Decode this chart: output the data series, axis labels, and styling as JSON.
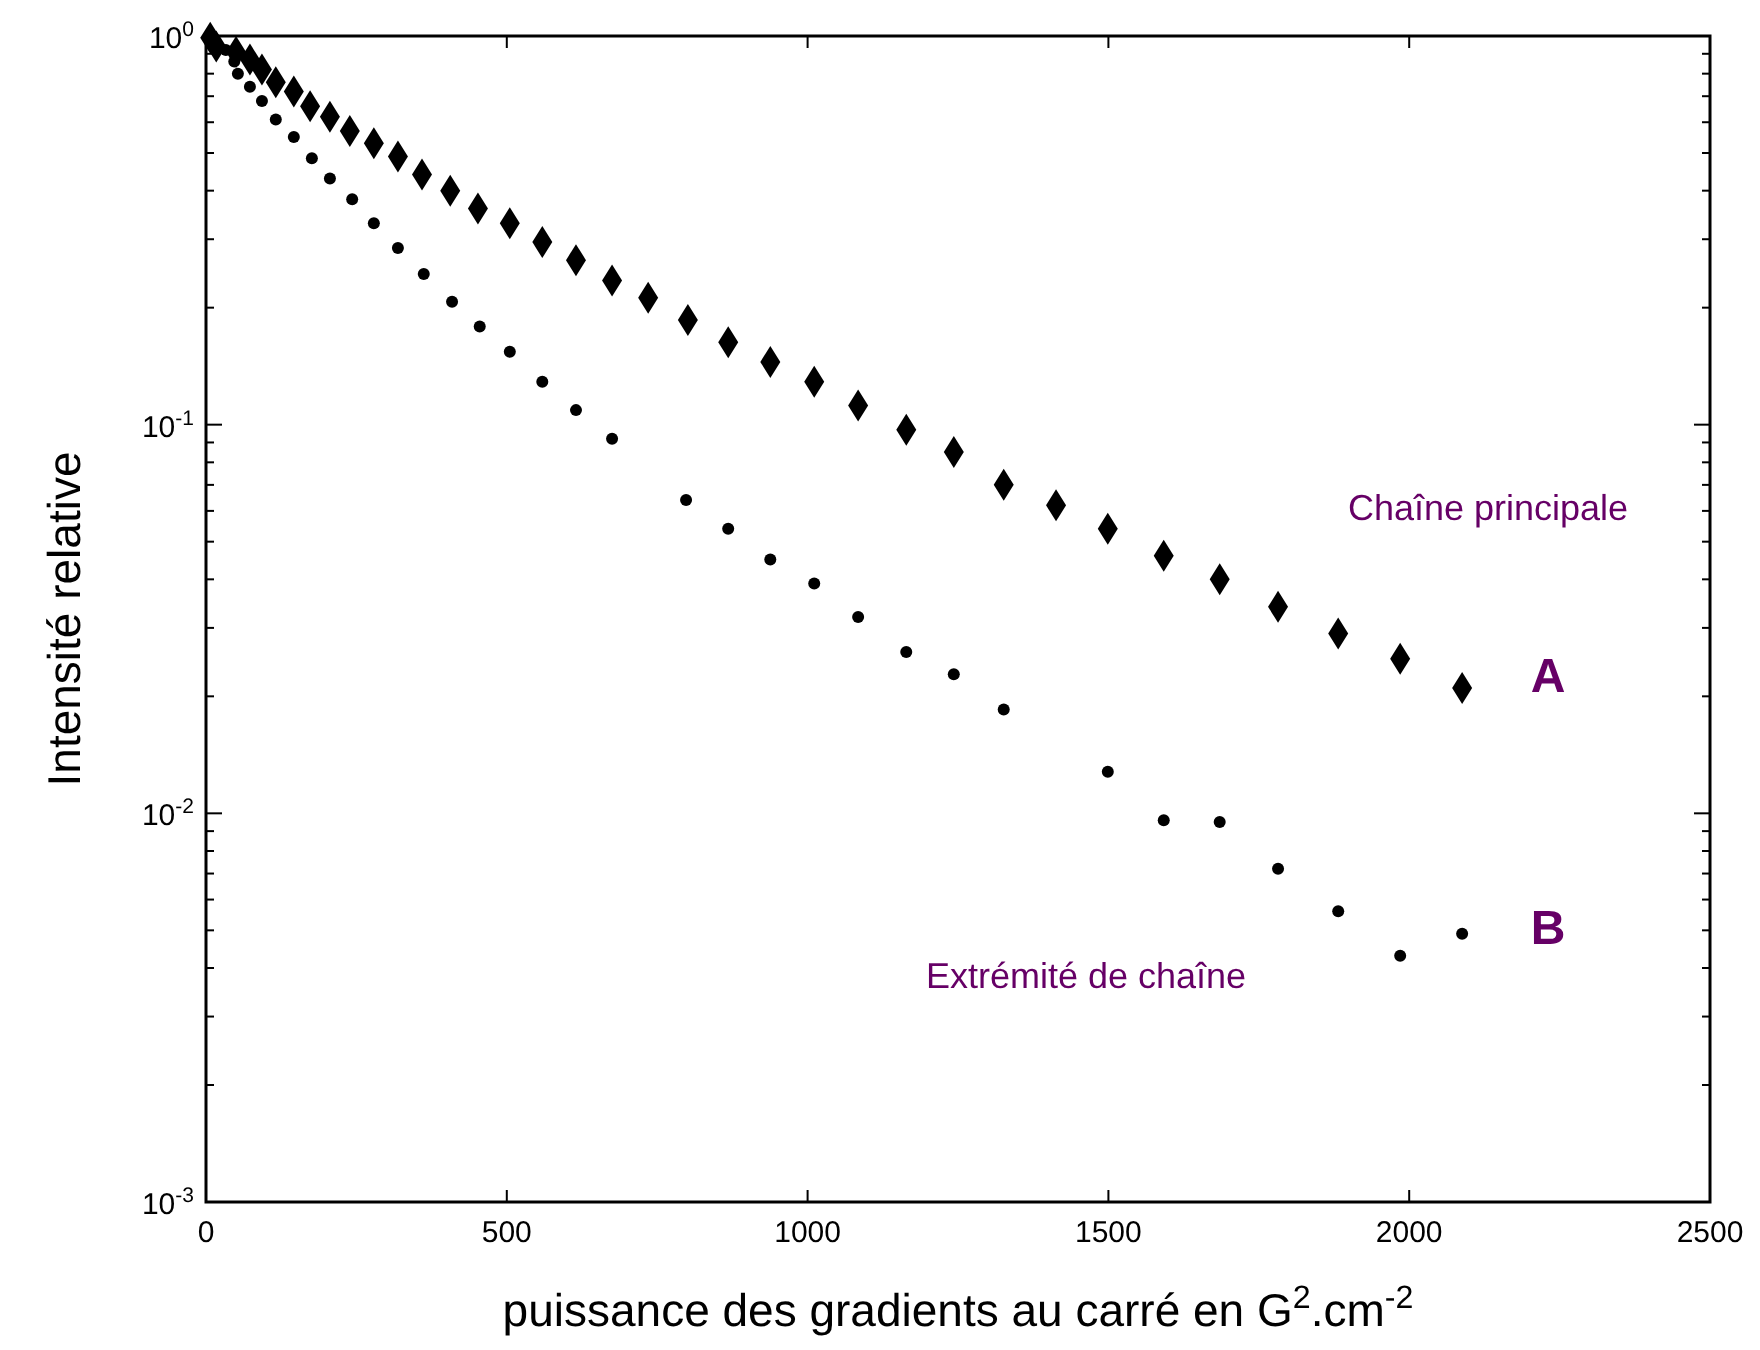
{
  "chart_data": {
    "type": "scatter",
    "xlabel": "puissance des gradients au carré en G$^{2}$.cm$^{-2}$",
    "ylabel": "Intensité relative",
    "log": "y",
    "grid": false,
    "xlim": [
      0,
      2500
    ],
    "xticks": [
      0,
      500,
      1000,
      1500,
      2000,
      2500
    ],
    "ylim": [
      0.001,
      1
    ],
    "yticks": [
      {
        "value": 0.001,
        "label": "10$^{-3}$"
      },
      {
        "value": 0.002,
        "label": null
      },
      {
        "value": 0.003,
        "label": null
      },
      {
        "value": 0.004,
        "label": null
      },
      {
        "value": 0.005,
        "label": null
      },
      {
        "value": 0.006,
        "label": null
      },
      {
        "value": 0.007,
        "label": null
      },
      {
        "value": 0.008,
        "label": null
      },
      {
        "value": 0.009,
        "label": null
      },
      {
        "value": 0.01,
        "label": "10$^{-2}$"
      },
      {
        "value": 0.02,
        "label": null
      },
      {
        "value": 0.03,
        "label": null
      },
      {
        "value": 0.04,
        "label": null
      },
      {
        "value": 0.05,
        "label": null
      },
      {
        "value": 0.06,
        "label": null
      },
      {
        "value": 0.07,
        "label": null
      },
      {
        "value": 0.08,
        "label": null
      },
      {
        "value": 0.09,
        "label": null
      },
      {
        "value": 0.1,
        "label": "10$^{-1}$"
      },
      {
        "value": 0.2,
        "label": null
      },
      {
        "value": 0.3,
        "label": null
      },
      {
        "value": 0.4,
        "label": null
      },
      {
        "value": 0.5,
        "label": null
      },
      {
        "value": 0.6,
        "label": null
      },
      {
        "value": 0.7,
        "label": null
      },
      {
        "value": 0.8,
        "label": null
      },
      {
        "value": 0.9,
        "label": null
      },
      {
        "value": 1,
        "label": "10$^{0}$"
      }
    ],
    "series": [
      {
        "color": "#000000",
        "marker": "diamond",
        "x": [
          7,
          17,
          50,
          73,
          93,
          116,
          146,
          173,
          206,
          239,
          279,
          319,
          359,
          406,
          452,
          505,
          559,
          615,
          675,
          735,
          801,
          868,
          938,
          1011,
          1084,
          1164,
          1243,
          1326,
          1413,
          1499,
          1592,
          1685,
          1782,
          1882,
          1985,
          2088
        ],
        "values": [
          0.99,
          0.94,
          0.91,
          0.87,
          0.82,
          0.76,
          0.72,
          0.66,
          0.62,
          0.57,
          0.53,
          0.49,
          0.44,
          0.4,
          0.36,
          0.33,
          0.295,
          0.265,
          0.235,
          0.212,
          0.186,
          0.163,
          0.145,
          0.129,
          0.112,
          0.097,
          0.085,
          0.07,
          0.062,
          0.054,
          0.046,
          0.04,
          0.034,
          0.029,
          0.025,
          0.021
        ]
      },
      {
        "color": "#000000",
        "marker": "circle",
        "x": [
          33,
          47,
          53,
          73,
          93,
          116,
          146,
          176,
          206,
          243,
          279,
          319,
          362,
          409,
          455,
          505,
          559,
          615,
          675,
          798,
          868,
          938,
          1011,
          1084,
          1164,
          1243,
          1326,
          1499,
          1592,
          1685,
          1782,
          1882,
          1985,
          2088
        ],
        "values": [
          0.92,
          0.86,
          0.8,
          0.74,
          0.68,
          0.61,
          0.55,
          0.485,
          0.43,
          0.38,
          0.33,
          0.285,
          0.244,
          0.207,
          0.179,
          0.154,
          0.129,
          0.109,
          0.092,
          0.064,
          0.054,
          0.045,
          0.039,
          0.032,
          0.026,
          0.0228,
          0.0185,
          0.0128,
          0.0096,
          0.0095,
          0.0072,
          0.0056,
          0.0043,
          0.0049
        ]
      }
    ],
    "annotations": [
      "Chaîne principale",
      "A",
      "B",
      "Extrémité de chaîne"
    ]
  }
}
